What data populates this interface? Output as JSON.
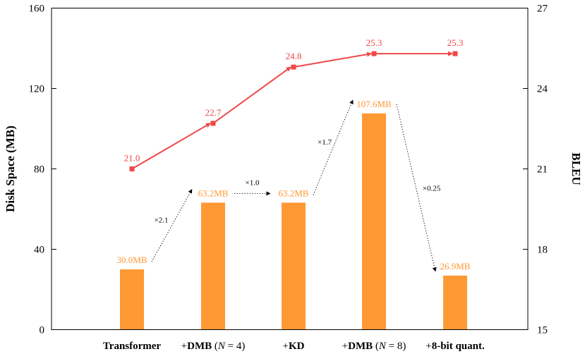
{
  "chart_data": {
    "type": "bar",
    "categories": [
      "Transformer",
      "+DMB (N = 4)",
      "+KD",
      "+DMB (N = 8)",
      "+8-bit quant."
    ],
    "category_labels": [
      [
        {
          "t": "Transformer",
          "b": true
        }
      ],
      [
        {
          "t": "+",
          "b": false
        },
        {
          "t": "DMB",
          "b": true
        },
        {
          "t": " (",
          "b": false
        },
        {
          "t": "N",
          "b": false,
          "i": true
        },
        {
          "t": " = 4)",
          "b": false
        }
      ],
      [
        {
          "t": "+",
          "b": false
        },
        {
          "t": "KD",
          "b": true
        }
      ],
      [
        {
          "t": "+",
          "b": false
        },
        {
          "t": "DMB",
          "b": true
        },
        {
          "t": " (",
          "b": false
        },
        {
          "t": "N",
          "b": false,
          "i": true
        },
        {
          "t": " = 8)",
          "b": false
        }
      ],
      [
        {
          "t": "+",
          "b": false
        },
        {
          "t": "8-bit quant.",
          "b": true
        }
      ]
    ],
    "series": [
      {
        "kind": "bar",
        "axis": "left",
        "values": [
          30.0,
          63.2,
          63.2,
          107.6,
          26.9
        ],
        "labels": [
          "30.0MB",
          "63.2MB",
          "63.2MB",
          "107.6MB",
          "26.9MB"
        ],
        "color": "#ff9933"
      },
      {
        "kind": "line",
        "axis": "right",
        "values": [
          21.0,
          22.7,
          24.8,
          25.3,
          25.3
        ],
        "labels": [
          "21.0",
          "22.7",
          "24.8",
          "25.3",
          "25.3"
        ],
        "color": "#f04848"
      }
    ],
    "ratios": [
      "×2.1",
      "×1.0",
      "×1.7",
      "×0.25"
    ],
    "ylabel": "Disk Space (MB)",
    "y2label": "BLEU",
    "ylim": [
      0,
      160
    ],
    "y2lim": [
      15,
      27
    ],
    "yticks": [
      "0",
      "40",
      "80",
      "120",
      "160"
    ],
    "y2ticks": [
      "15",
      "18",
      "21",
      "24",
      "27"
    ],
    "grid": false,
    "legend": "none"
  }
}
